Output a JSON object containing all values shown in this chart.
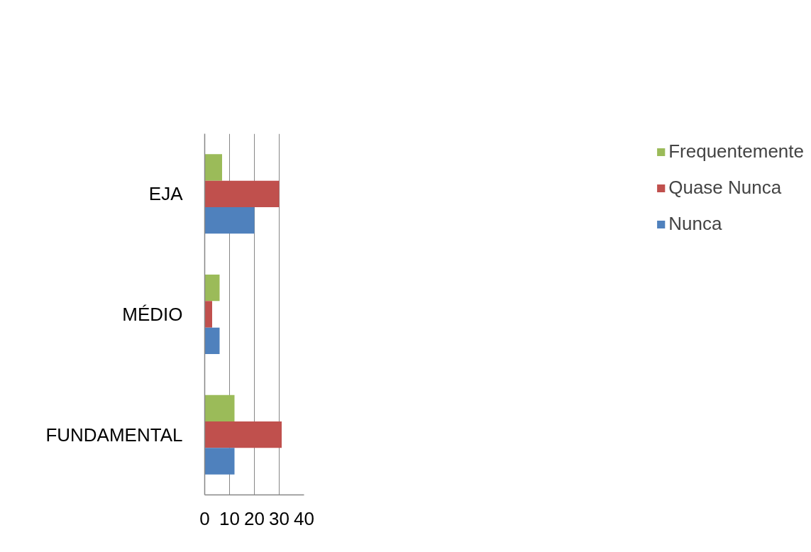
{
  "chart_data": {
    "type": "bar",
    "orientation": "horizontal",
    "categories": [
      "EJA",
      "MÉDIO",
      "FUNDAMENTAL"
    ],
    "series": [
      {
        "name": "Frequentemente",
        "color": "#9bbb59",
        "values": [
          7,
          6,
          12
        ]
      },
      {
        "name": "Quase Nunca",
        "color": "#c0504d",
        "values": [
          30,
          3,
          31
        ]
      },
      {
        "name": "Nunca",
        "color": "#4f81bd",
        "values": [
          20,
          6,
          12
        ]
      }
    ],
    "xlim": [
      0,
      40
    ],
    "xticks": [
      0,
      10,
      20,
      30,
      40
    ],
    "grid": "x",
    "legend": "right"
  }
}
